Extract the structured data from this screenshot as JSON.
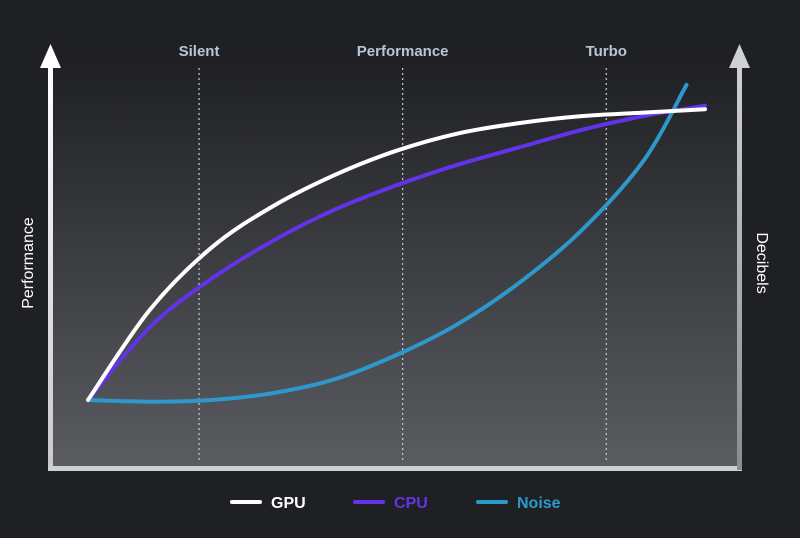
{
  "chart_data": {
    "type": "line",
    "left_axis_label": "Performance",
    "right_axis_label": "Decibels",
    "modes": [
      "Silent",
      "Performance",
      "Turbo"
    ],
    "mode_positions": [
      0.18,
      0.51,
      0.84
    ],
    "grid": false,
    "legend_position": "bottom",
    "series": [
      {
        "name": "GPU",
        "color": "#ffffff",
        "x": [
          0,
          0.1,
          0.2,
          0.3,
          0.4,
          0.5,
          0.6,
          0.7,
          0.8,
          0.9,
          1.0
        ],
        "y": [
          0.07,
          0.33,
          0.51,
          0.63,
          0.72,
          0.79,
          0.84,
          0.87,
          0.89,
          0.9,
          0.91
        ]
      },
      {
        "name": "CPU",
        "color": "#6233e8",
        "x": [
          0,
          0.1,
          0.2,
          0.3,
          0.4,
          0.5,
          0.6,
          0.7,
          0.8,
          0.9,
          1.0
        ],
        "y": [
          0.07,
          0.28,
          0.42,
          0.53,
          0.62,
          0.69,
          0.75,
          0.8,
          0.85,
          0.89,
          0.92
        ]
      },
      {
        "name": "Noise",
        "color": "#2e97cc",
        "x": [
          0,
          0.1,
          0.2,
          0.3,
          0.4,
          0.5,
          0.6,
          0.7,
          0.8,
          0.9,
          0.97
        ],
        "y": [
          0.07,
          0.065,
          0.07,
          0.09,
          0.13,
          0.2,
          0.29,
          0.41,
          0.56,
          0.76,
          0.98
        ]
      }
    ]
  }
}
